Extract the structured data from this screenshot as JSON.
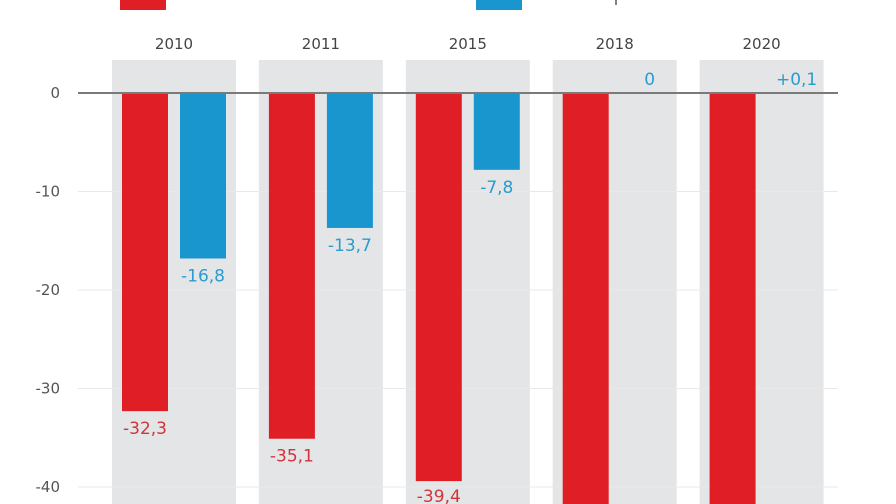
{
  "chart_data": {
    "type": "bar",
    "title": "",
    "xlabel": "",
    "ylabel": "",
    "categories": [
      "2010",
      "2011",
      "2015",
      "2018",
      "2020"
    ],
    "series": [
      {
        "name": "",
        "color": "#e01e26",
        "values": [
          -32.3,
          -35.1,
          -39.4,
          null,
          null
        ],
        "labels": [
          "-32,3",
          "-35,1",
          "-39,4",
          "",
          ""
        ]
      },
      {
        "name": "",
        "color": "#1a96cf",
        "values": [
          -16.8,
          -13.7,
          -7.8,
          0,
          0.1
        ],
        "labels": [
          "-16,8",
          "-13,7",
          "-7,8",
          "0",
          "+0,1"
        ]
      }
    ],
    "ylim": [
      -41.5,
      3.5
    ],
    "yticks": [
      0,
      -10,
      -20,
      -30,
      -40
    ],
    "ytick_labels": [
      "0",
      "-10",
      "-20",
      "-30",
      "-40"
    ],
    "grid": true,
    "legend_position": "top",
    "panel_color": "#e4e5e7",
    "text_color": "#555555",
    "axis_color": "#7a7a7a"
  }
}
